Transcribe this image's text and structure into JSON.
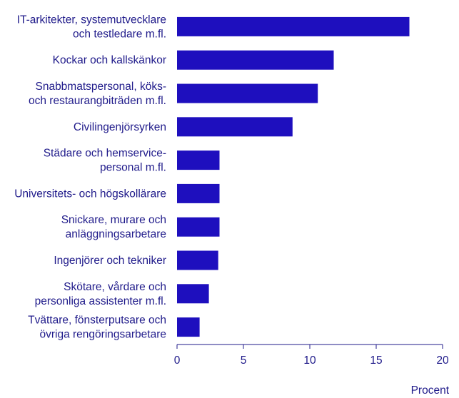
{
  "chart_data": {
    "type": "bar",
    "orientation": "horizontal",
    "categories": [
      [
        "IT-arkitekter, systemutvecklare",
        "och testledare m.fl."
      ],
      [
        "Kockar och kallskänkor"
      ],
      [
        "Snabbmatspersonal, köks-",
        "och restaurangbiträden m.fl."
      ],
      [
        "Civilingenjörsyrken"
      ],
      [
        "Städare och hemservice-",
        "personal m.fl."
      ],
      [
        "Universitets- och högskollärare"
      ],
      [
        "Snickare, murare och",
        "anläggningsarbetare"
      ],
      [
        "Ingenjörer och tekniker"
      ],
      [
        "Skötare, vårdare och",
        "personliga assistenter m.fl."
      ],
      [
        "Tvättare, fönsterputsare och",
        "övriga rengöringsarbetare"
      ]
    ],
    "values": [
      17.5,
      11.8,
      10.6,
      8.7,
      3.2,
      3.2,
      3.2,
      3.1,
      2.4,
      1.7
    ],
    "xlim": [
      0,
      20
    ],
    "xticks": [
      0,
      5,
      10,
      15,
      20
    ],
    "xlabel": "Procent",
    "ylabel": "",
    "title": "",
    "grid": false,
    "colors": {
      "bar": "#1e0fbe",
      "text": "#1f1a8a",
      "axis": "#1f1a8a",
      "background": "#ffffff"
    }
  }
}
